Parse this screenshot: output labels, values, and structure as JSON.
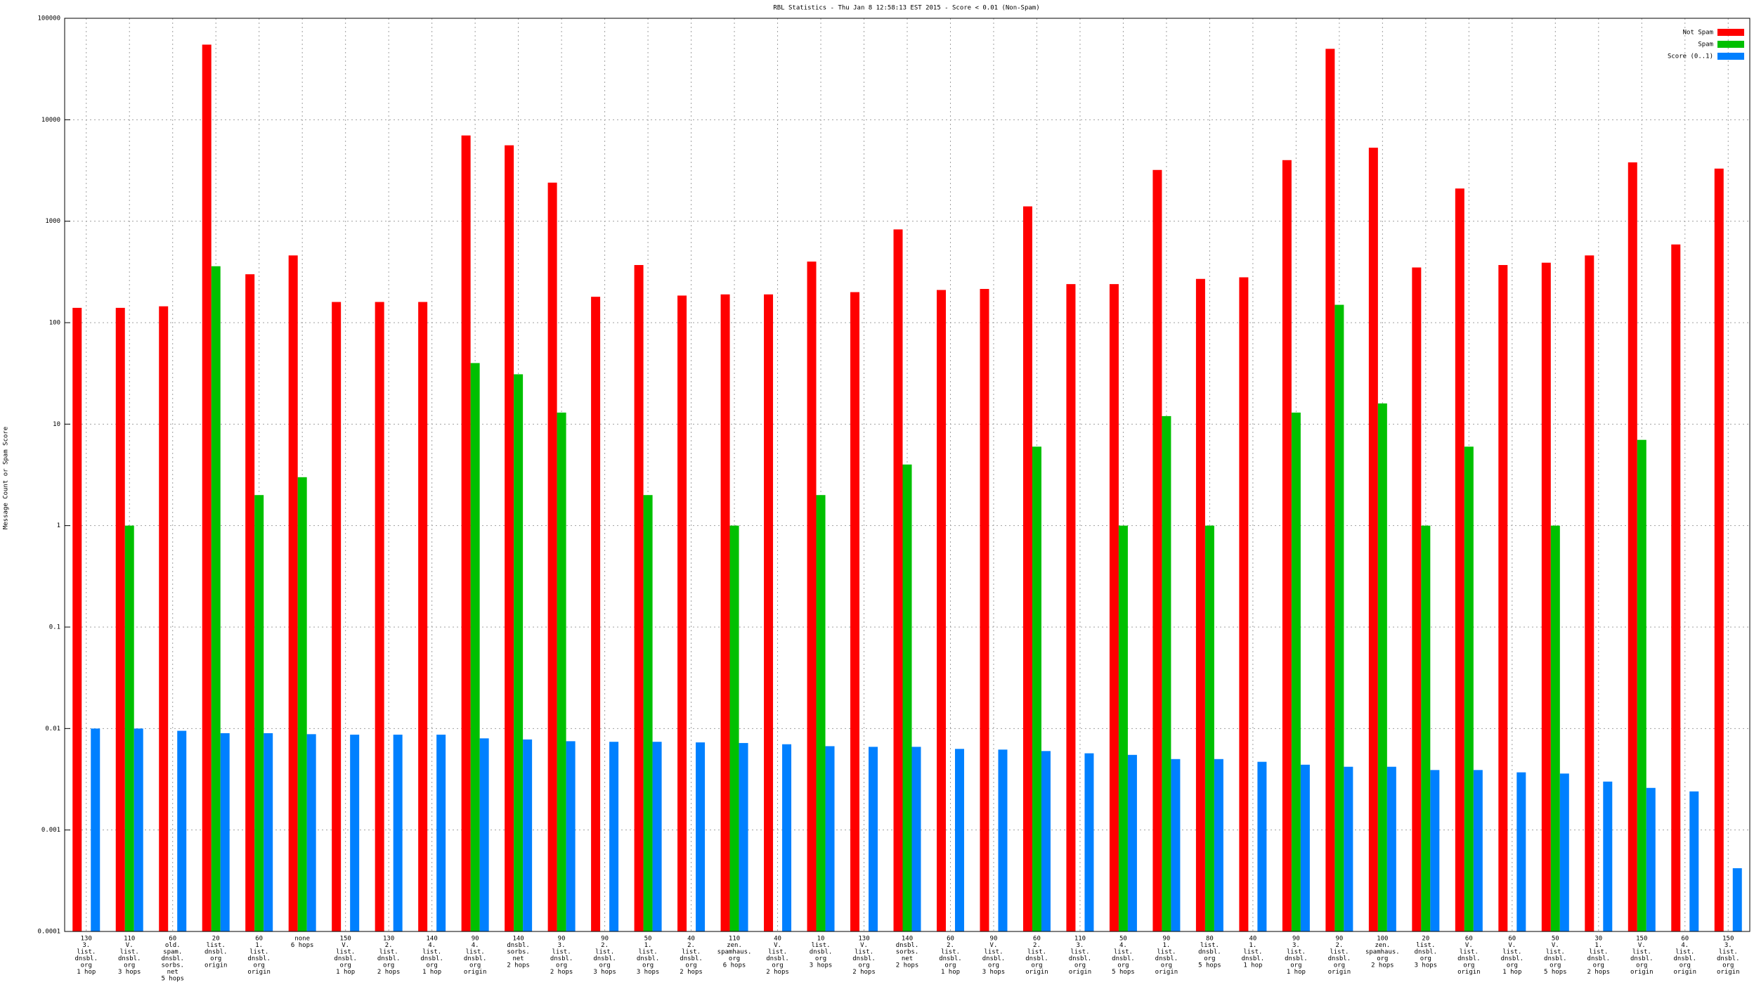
{
  "chart_data": {
    "type": "bar",
    "title": "RBL Statistics - Thu Jan  8 12:58:13 EST 2015 - Score < 0.01 (Non-Spam)",
    "y_label": "Message Count or Spam Score",
    "log_scale": true,
    "grid": true,
    "legend": "top-right",
    "ylim": [
      0.0001,
      100000
    ],
    "yticks": [
      0.0001,
      0.001,
      0.01,
      0.1,
      1,
      10,
      100,
      1000,
      10000,
      100000
    ],
    "categories": [
      [
        "130",
        "3.",
        "list.",
        "dnsbl.",
        "org",
        "1 hop"
      ],
      [
        "110",
        "V.",
        "list.",
        "dnsbl.",
        "org",
        "3 hops"
      ],
      [
        "60",
        "old.",
        "spam.",
        "dnsbl.",
        "sorbs.",
        "net",
        "5 hops"
      ],
      [
        "20",
        "list.",
        "dnsbl.",
        "org",
        "origin"
      ],
      [
        "60",
        "1.",
        "list.",
        "dnsbl.",
        "org",
        "origin"
      ],
      [
        "none",
        "6 hops"
      ],
      [
        "150",
        "V.",
        "list.",
        "dnsbl.",
        "org",
        "1 hop"
      ],
      [
        "130",
        "2.",
        "list.",
        "dnsbl.",
        "org",
        "2 hops"
      ],
      [
        "140",
        "4.",
        "list.",
        "dnsbl.",
        "org",
        "1 hop"
      ],
      [
        "90",
        "4.",
        "list.",
        "dnsbl.",
        "org",
        "origin"
      ],
      [
        "140",
        "dnsbl.",
        "sorbs.",
        "net",
        "2 hops"
      ],
      [
        "90",
        "3.",
        "list.",
        "dnsbl.",
        "org",
        "2 hops"
      ],
      [
        "90",
        "2.",
        "list.",
        "dnsbl.",
        "org",
        "3 hops"
      ],
      [
        "50",
        "1.",
        "list.",
        "dnsbl.",
        "org",
        "3 hops"
      ],
      [
        "40",
        "2.",
        "list.",
        "dnsbl.",
        "org",
        "2 hops"
      ],
      [
        "110",
        "zen.",
        "spamhaus.",
        "org",
        "6 hops"
      ],
      [
        "40",
        "V.",
        "list.",
        "dnsbl.",
        "org",
        "2 hops"
      ],
      [
        "10",
        "list.",
        "dnsbl.",
        "org",
        "3 hops"
      ],
      [
        "130",
        "V.",
        "list.",
        "dnsbl.",
        "org",
        "2 hops"
      ],
      [
        "140",
        "dnsbl.",
        "sorbs.",
        "net",
        "2 hops"
      ],
      [
        "60",
        "2.",
        "list.",
        "dnsbl.",
        "org",
        "1 hop"
      ],
      [
        "90",
        "V.",
        "list.",
        "dnsbl.",
        "org",
        "3 hops"
      ],
      [
        "60",
        "2.",
        "list.",
        "dnsbl.",
        "org",
        "origin"
      ],
      [
        "110",
        "3.",
        "list.",
        "dnsbl.",
        "org",
        "origin"
      ],
      [
        "50",
        "4.",
        "list.",
        "dnsbl.",
        "org",
        "5 hops"
      ],
      [
        "90",
        "1.",
        "list.",
        "dnsbl.",
        "org",
        "origin"
      ],
      [
        "80",
        "list.",
        "dnsbl.",
        "org",
        "5 hops"
      ],
      [
        "40",
        "1.",
        "list.",
        "dnsbl.",
        "1 hop"
      ],
      [
        "90",
        "3.",
        "list.",
        "dnsbl.",
        "org",
        "1 hop"
      ],
      [
        "90",
        "2.",
        "list.",
        "dnsbl.",
        "org",
        "origin"
      ],
      [
        "100",
        "zen.",
        "spamhaus.",
        "org",
        "2 hops"
      ],
      [
        "20",
        "list.",
        "dnsbl.",
        "org",
        "3 hops"
      ],
      [
        "60",
        "V.",
        "list.",
        "dnsbl.",
        "org",
        "origin"
      ],
      [
        "60",
        "V.",
        "list.",
        "dnsbl.",
        "org",
        "1 hop"
      ],
      [
        "50",
        "V.",
        "list.",
        "dnsbl.",
        "org",
        "5 hops"
      ],
      [
        "30",
        "1.",
        "list.",
        "dnsbl.",
        "org",
        "2 hops"
      ],
      [
        "150",
        "V.",
        "list.",
        "dnsbl.",
        "org",
        "origin"
      ],
      [
        "60",
        "4.",
        "list.",
        "dnsbl.",
        "org",
        "origin"
      ],
      [
        "150",
        "3.",
        "list.",
        "dnsbl.",
        "org",
        "origin"
      ]
    ],
    "series": [
      {
        "name": "Not Spam",
        "color": "#ff0000",
        "values": [
          140,
          140,
          145,
          55000,
          300,
          460,
          160,
          160,
          160,
          7000,
          5600,
          2400,
          180,
          370,
          185,
          190,
          190,
          400,
          200,
          830,
          210,
          215,
          1400,
          240,
          240,
          3200,
          270,
          280,
          4000,
          50000,
          5300,
          350,
          2100,
          370,
          390,
          460,
          3800,
          590,
          3300
        ]
      },
      {
        "name": "Spam",
        "color": "#00c000",
        "values": [
          null,
          1,
          null,
          360,
          2,
          3,
          null,
          null,
          null,
          40,
          31,
          13,
          null,
          2,
          null,
          1,
          null,
          2,
          null,
          4,
          null,
          null,
          6,
          null,
          1,
          12,
          1,
          null,
          13,
          150,
          16,
          1,
          6,
          null,
          1,
          null,
          7,
          null,
          null
        ]
      },
      {
        "name": "Score (0..1)",
        "color": "#0080ff",
        "values": [
          0.01,
          0.01,
          0.0095,
          0.009,
          0.009,
          0.0088,
          0.0087,
          0.0087,
          0.0087,
          0.008,
          0.0078,
          0.0075,
          0.0074,
          0.0074,
          0.0073,
          0.0072,
          0.007,
          0.0067,
          0.0066,
          0.0066,
          0.0063,
          0.0062,
          0.006,
          0.0057,
          0.0055,
          0.005,
          0.005,
          0.0047,
          0.0044,
          0.0042,
          0.0042,
          0.0039,
          0.0039,
          0.0037,
          0.0036,
          0.003,
          0.0026,
          0.0024,
          0.00042
        ]
      }
    ]
  }
}
